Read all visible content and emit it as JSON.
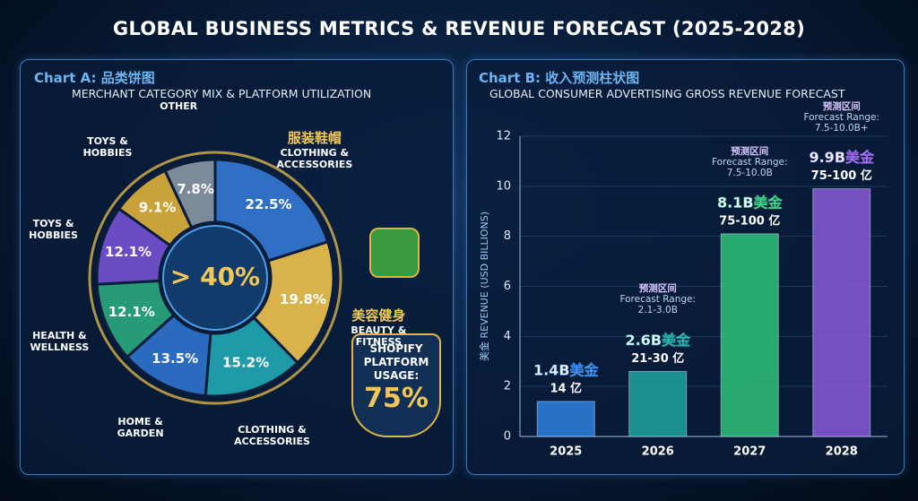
{
  "title": "GLOBAL BUSINESS METRICS & REVENUE FORECAST (2025-2028)",
  "chart_data": [
    {
      "type": "donut",
      "title": "Chart A: 品类饼图",
      "subtitle": "MERCHANT CATEGORY MIX & PLATFORM UTILIZATION",
      "categories": [
        "CLOTHING & ACCESSORIES",
        "BEAUTY & FITNESS",
        "CLOTHING & ACCESSORIES",
        "HOME & GARDEN",
        "HEALTH & WELLNESS",
        "TOYS & HOBBIES",
        "TOYS & HOBBIES",
        "OTHER"
      ],
      "category_labels_zh": [
        "服装鞋帽",
        "美容健身",
        null,
        null,
        null,
        null,
        null,
        null
      ],
      "values": [
        22.5,
        19.8,
        15.2,
        13.5,
        12.1,
        12.1,
        9.1,
        7.8
      ],
      "value_labels": [
        "22.5%",
        "19.8%",
        "15.2%",
        "13.5%",
        "12.1%",
        "12.1%",
        "9.1%",
        "7.8%"
      ],
      "colors": [
        "#2f6fc4",
        "#d9b24a",
        "#1f9aa8",
        "#2a6bc0",
        "#279a78",
        "#6a4cc4",
        "#c9a23a",
        "#7c8a99"
      ],
      "center_label": "> 40%",
      "badge_title": "SHOPIFY PLATFORM USAGE:",
      "badge_label": "75%"
    },
    {
      "type": "bar",
      "title": "Chart B: 收入预测柱状图",
      "subtitle": "GLOBAL CONSUMER ADVERTISING GROSS REVENUE FORECAST",
      "categories": [
        "2025",
        "2026",
        "2027",
        "2028"
      ],
      "values": [
        1.4,
        2.6,
        8.1,
        9.9
      ],
      "value_labels": [
        "1.4B美金",
        "2.6B美金",
        "8.1B美金",
        "9.9B美金"
      ],
      "value_labels_cny": [
        "14 亿",
        "21-30 亿",
        "75-100 亿",
        "75-100 亿"
      ],
      "annotations": [
        null,
        {
          "title": "预测区间",
          "text": "Forecast Range: 2.1-3.0B"
        },
        {
          "title": "预测区间",
          "text": "Forecast Range: 7.5-10.0B"
        },
        {
          "title": "预测区间",
          "text": "Forecast Range: 7.5-10.0B+"
        }
      ],
      "colors": [
        "#2f7fe0",
        "#1fa3a0",
        "#2ec27a",
        "#8a5ad8"
      ],
      "y_label": "美金 REVENUE (USD BILLIONS)",
      "ylim": [
        0,
        12
      ],
      "yticks": [
        0,
        2,
        4,
        6,
        8,
        10,
        12
      ],
      "grid": true
    }
  ]
}
